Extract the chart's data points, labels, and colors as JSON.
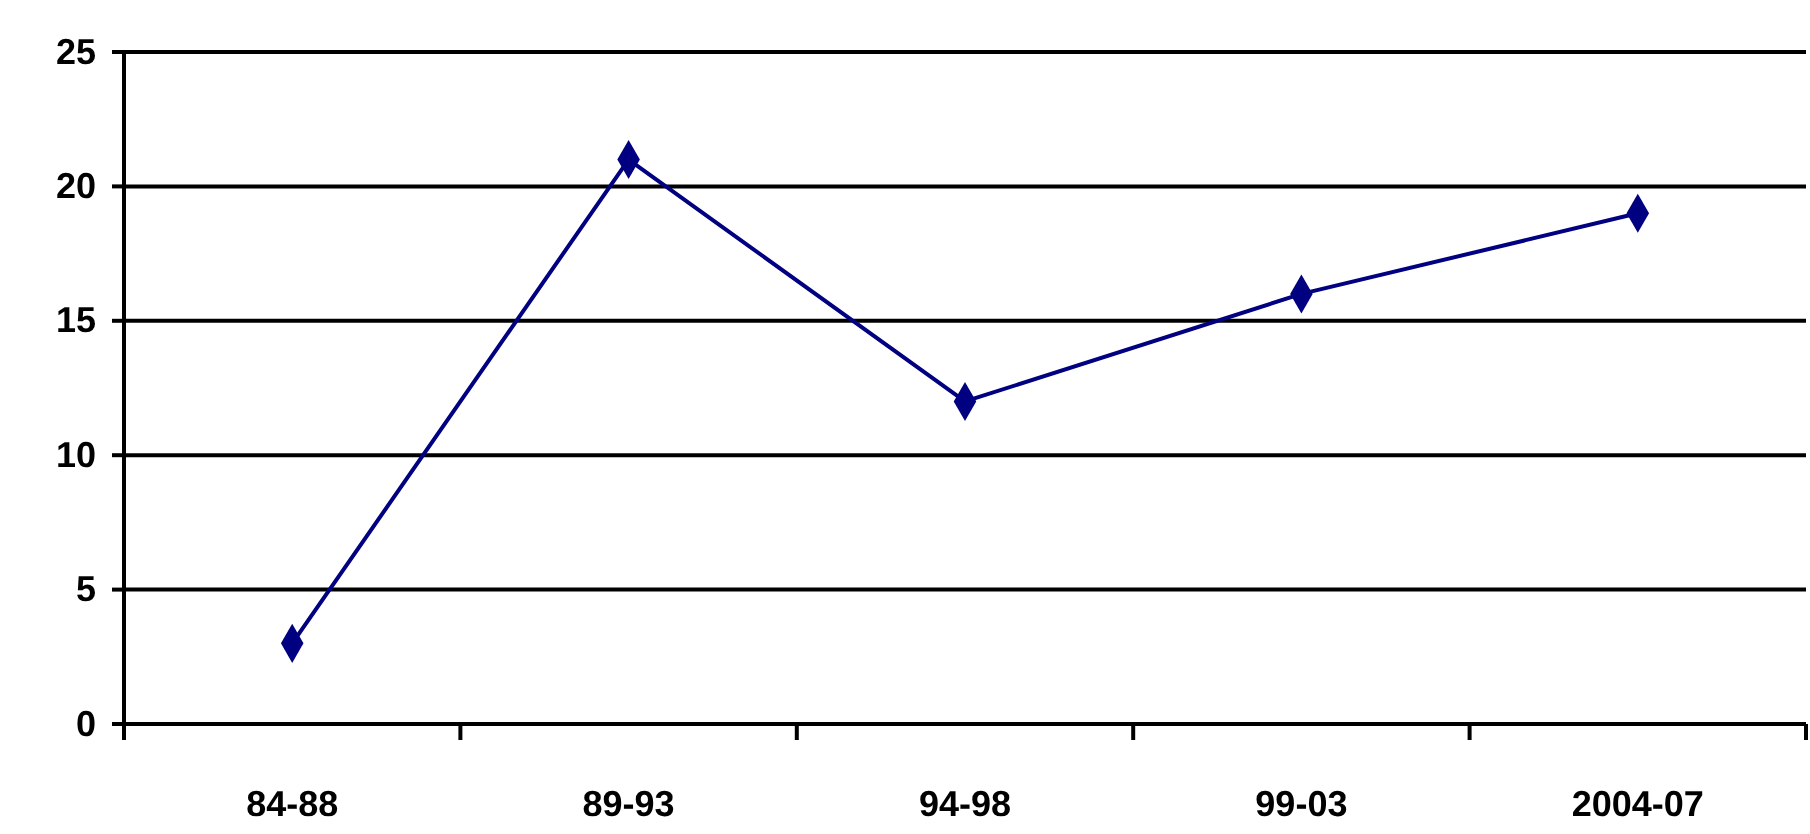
{
  "chart_data": {
    "type": "line",
    "categories": [
      "84-88",
      "89-93",
      "94-98",
      "99-03",
      "2004-07"
    ],
    "series": [
      {
        "color": "#000080",
        "values": [
          3,
          21,
          12,
          16,
          19
        ]
      }
    ],
    "ylim": [
      0,
      25
    ],
    "yticks": [
      0,
      5,
      10,
      15,
      20,
      25
    ],
    "grid": "y",
    "marker": "diamond",
    "line_style": "solid"
  }
}
